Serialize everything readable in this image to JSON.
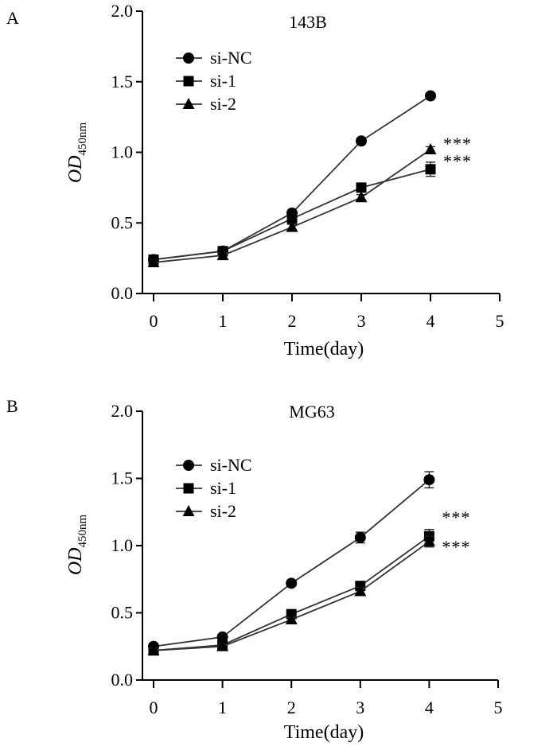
{
  "chart_data": [
    {
      "panel": "A",
      "type": "line",
      "title": "143B",
      "xlabel": "Time(day)",
      "ylabel": "OD",
      "ylabel_sub": "450nm",
      "xlim": [
        0,
        5
      ],
      "ylim": [
        0,
        2
      ],
      "x_ticks": [
        "0",
        "1",
        "2",
        "3",
        "4",
        "5"
      ],
      "y_ticks": [
        "0.0",
        "0.5",
        "1.0",
        "1.5",
        "2.0"
      ],
      "x": [
        0,
        1,
        2,
        3,
        4
      ],
      "legend_position": "top-left",
      "series": [
        {
          "name": "si-NC",
          "marker": "circle",
          "values": [
            0.24,
            0.3,
            0.57,
            1.08,
            1.4
          ],
          "errors": [
            0.02,
            0.02,
            0.02,
            0.02,
            0.02
          ]
        },
        {
          "name": "si-1",
          "marker": "square",
          "values": [
            0.24,
            0.3,
            0.53,
            0.75,
            0.88
          ],
          "errors": [
            0.02,
            0.02,
            0.02,
            0.02,
            0.05
          ]
        },
        {
          "name": "si-2",
          "marker": "triangle",
          "values": [
            0.22,
            0.27,
            0.47,
            0.68,
            1.02
          ],
          "errors": [
            0.02,
            0.02,
            0.02,
            0.02,
            0.02
          ]
        }
      ],
      "annotations": [
        {
          "text": "***",
          "x": 4,
          "y": 1.02
        },
        {
          "text": "***",
          "x": 4,
          "y": 0.88
        }
      ]
    },
    {
      "panel": "B",
      "type": "line",
      "title": "MG63",
      "xlabel": "Time(day)",
      "ylabel": "OD",
      "ylabel_sub": "450nm",
      "xlim": [
        0,
        5
      ],
      "ylim": [
        0,
        2
      ],
      "x_ticks": [
        "0",
        "1",
        "2",
        "3",
        "4",
        "5"
      ],
      "y_ticks": [
        "0.0",
        "0.5",
        "1.0",
        "1.5",
        "2.0"
      ],
      "x": [
        0,
        1,
        2,
        3,
        4
      ],
      "legend_position": "top-left",
      "series": [
        {
          "name": "si-NC",
          "marker": "circle",
          "values": [
            0.25,
            0.32,
            0.72,
            1.06,
            1.49
          ],
          "errors": [
            0.02,
            0.02,
            0.02,
            0.04,
            0.06
          ]
        },
        {
          "name": "si-1",
          "marker": "square",
          "values": [
            0.22,
            0.26,
            0.49,
            0.7,
            1.07
          ],
          "errors": [
            0.02,
            0.02,
            0.02,
            0.03,
            0.05
          ]
        },
        {
          "name": "si-2",
          "marker": "triangle",
          "values": [
            0.22,
            0.25,
            0.45,
            0.66,
            1.03
          ],
          "errors": [
            0.02,
            0.02,
            0.02,
            0.03,
            0.04
          ]
        }
      ],
      "annotations": [
        {
          "text": "***",
          "x": 4,
          "y": 1.07
        },
        {
          "text": "***",
          "x": 4,
          "y": 1.03
        }
      ]
    }
  ]
}
